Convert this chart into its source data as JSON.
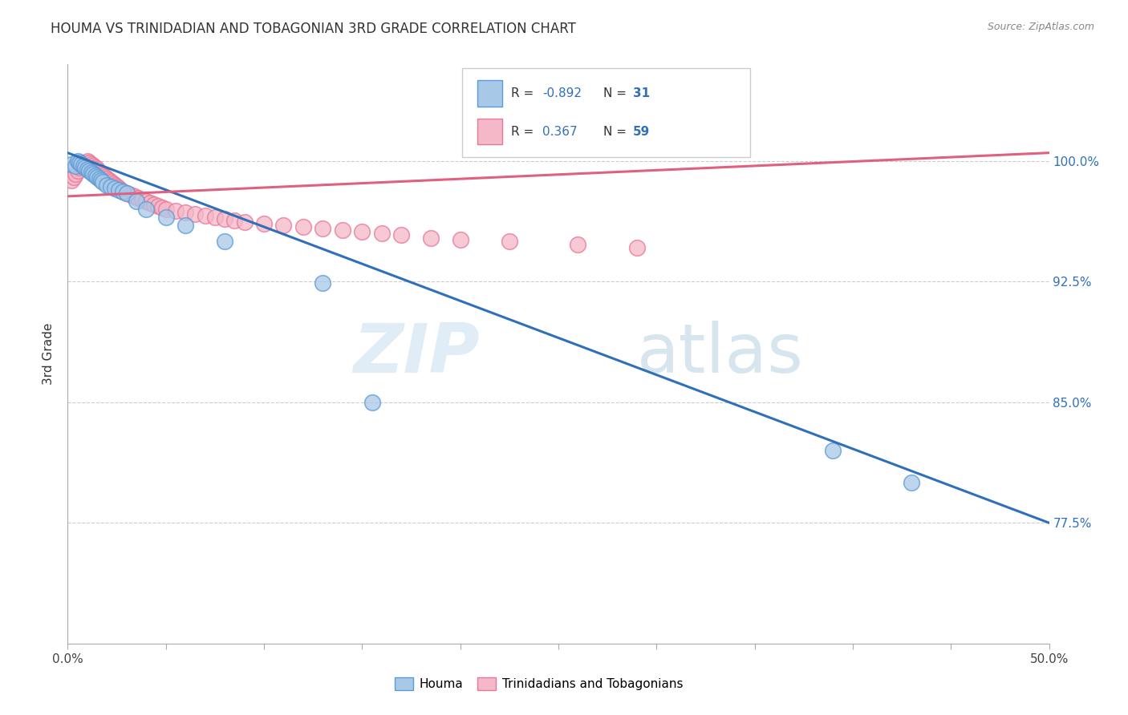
{
  "title": "HOUMA VS TRINIDADIAN AND TOBAGONIAN 3RD GRADE CORRELATION CHART",
  "source": "Source: ZipAtlas.com",
  "ylabel": "3rd Grade",
  "ytick_labels": [
    "77.5%",
    "85.0%",
    "92.5%",
    "100.0%"
  ],
  "ytick_values": [
    0.775,
    0.85,
    0.925,
    1.0
  ],
  "xlim": [
    0.0,
    0.5
  ],
  "ylim": [
    0.7,
    1.06
  ],
  "houma_color": "#a8c8e8",
  "houma_edge": "#5b9bd5",
  "tnt_color": "#f4b8c8",
  "tnt_edge": "#e87898",
  "houma_R": -0.892,
  "houma_N": 31,
  "tnt_R": 0.367,
  "tnt_N": 59,
  "houma_line_color": "#3070b8",
  "tnt_line_color": "#e06080",
  "legend_label_houma": "Houma",
  "legend_label_tnt": "Trinidadians and Tobagonians",
  "watermark_zip": "ZIP",
  "watermark_atlas": "atlas",
  "houma_line_x0": 0.0,
  "houma_line_y0": 1.005,
  "houma_line_x1": 0.5,
  "houma_line_y1": 0.775,
  "tnt_line_x0": 0.0,
  "tnt_line_y0": 0.978,
  "tnt_line_x1": 0.5,
  "tnt_line_y1": 1.005,
  "houma_scatter_x": [
    0.002,
    0.004,
    0.005,
    0.006,
    0.007,
    0.008,
    0.009,
    0.01,
    0.011,
    0.012,
    0.013,
    0.014,
    0.015,
    0.016,
    0.017,
    0.018,
    0.02,
    0.022,
    0.024,
    0.026,
    0.028,
    0.03,
    0.035,
    0.04,
    0.05,
    0.06,
    0.08,
    0.13,
    0.155,
    0.39,
    0.43
  ],
  "houma_scatter_y": [
    0.998,
    0.997,
    1.0,
    0.999,
    0.998,
    0.997,
    0.996,
    0.995,
    0.994,
    0.993,
    0.992,
    0.991,
    0.99,
    0.989,
    0.988,
    0.987,
    0.985,
    0.984,
    0.983,
    0.982,
    0.981,
    0.98,
    0.975,
    0.97,
    0.965,
    0.96,
    0.95,
    0.924,
    0.85,
    0.82,
    0.8
  ],
  "tnt_scatter_x": [
    0.002,
    0.003,
    0.004,
    0.005,
    0.006,
    0.007,
    0.008,
    0.009,
    0.01,
    0.011,
    0.012,
    0.013,
    0.014,
    0.015,
    0.016,
    0.017,
    0.018,
    0.019,
    0.02,
    0.021,
    0.022,
    0.023,
    0.024,
    0.025,
    0.026,
    0.027,
    0.028,
    0.03,
    0.032,
    0.034,
    0.036,
    0.038,
    0.04,
    0.042,
    0.044,
    0.046,
    0.048,
    0.05,
    0.055,
    0.06,
    0.065,
    0.07,
    0.075,
    0.08,
    0.085,
    0.09,
    0.1,
    0.11,
    0.12,
    0.13,
    0.14,
    0.15,
    0.16,
    0.17,
    0.185,
    0.2,
    0.225,
    0.26,
    0.29
  ],
  "tnt_scatter_y": [
    0.988,
    0.99,
    0.992,
    0.994,
    0.996,
    0.997,
    0.998,
    0.999,
    1.0,
    0.999,
    0.998,
    0.997,
    0.996,
    0.995,
    0.993,
    0.992,
    0.991,
    0.99,
    0.989,
    0.988,
    0.987,
    0.986,
    0.985,
    0.984,
    0.983,
    0.982,
    0.981,
    0.98,
    0.979,
    0.978,
    0.977,
    0.976,
    0.975,
    0.974,
    0.973,
    0.972,
    0.971,
    0.97,
    0.969,
    0.968,
    0.967,
    0.966,
    0.965,
    0.964,
    0.963,
    0.962,
    0.961,
    0.96,
    0.959,
    0.958,
    0.957,
    0.956,
    0.955,
    0.954,
    0.952,
    0.951,
    0.95,
    0.948,
    0.946
  ]
}
